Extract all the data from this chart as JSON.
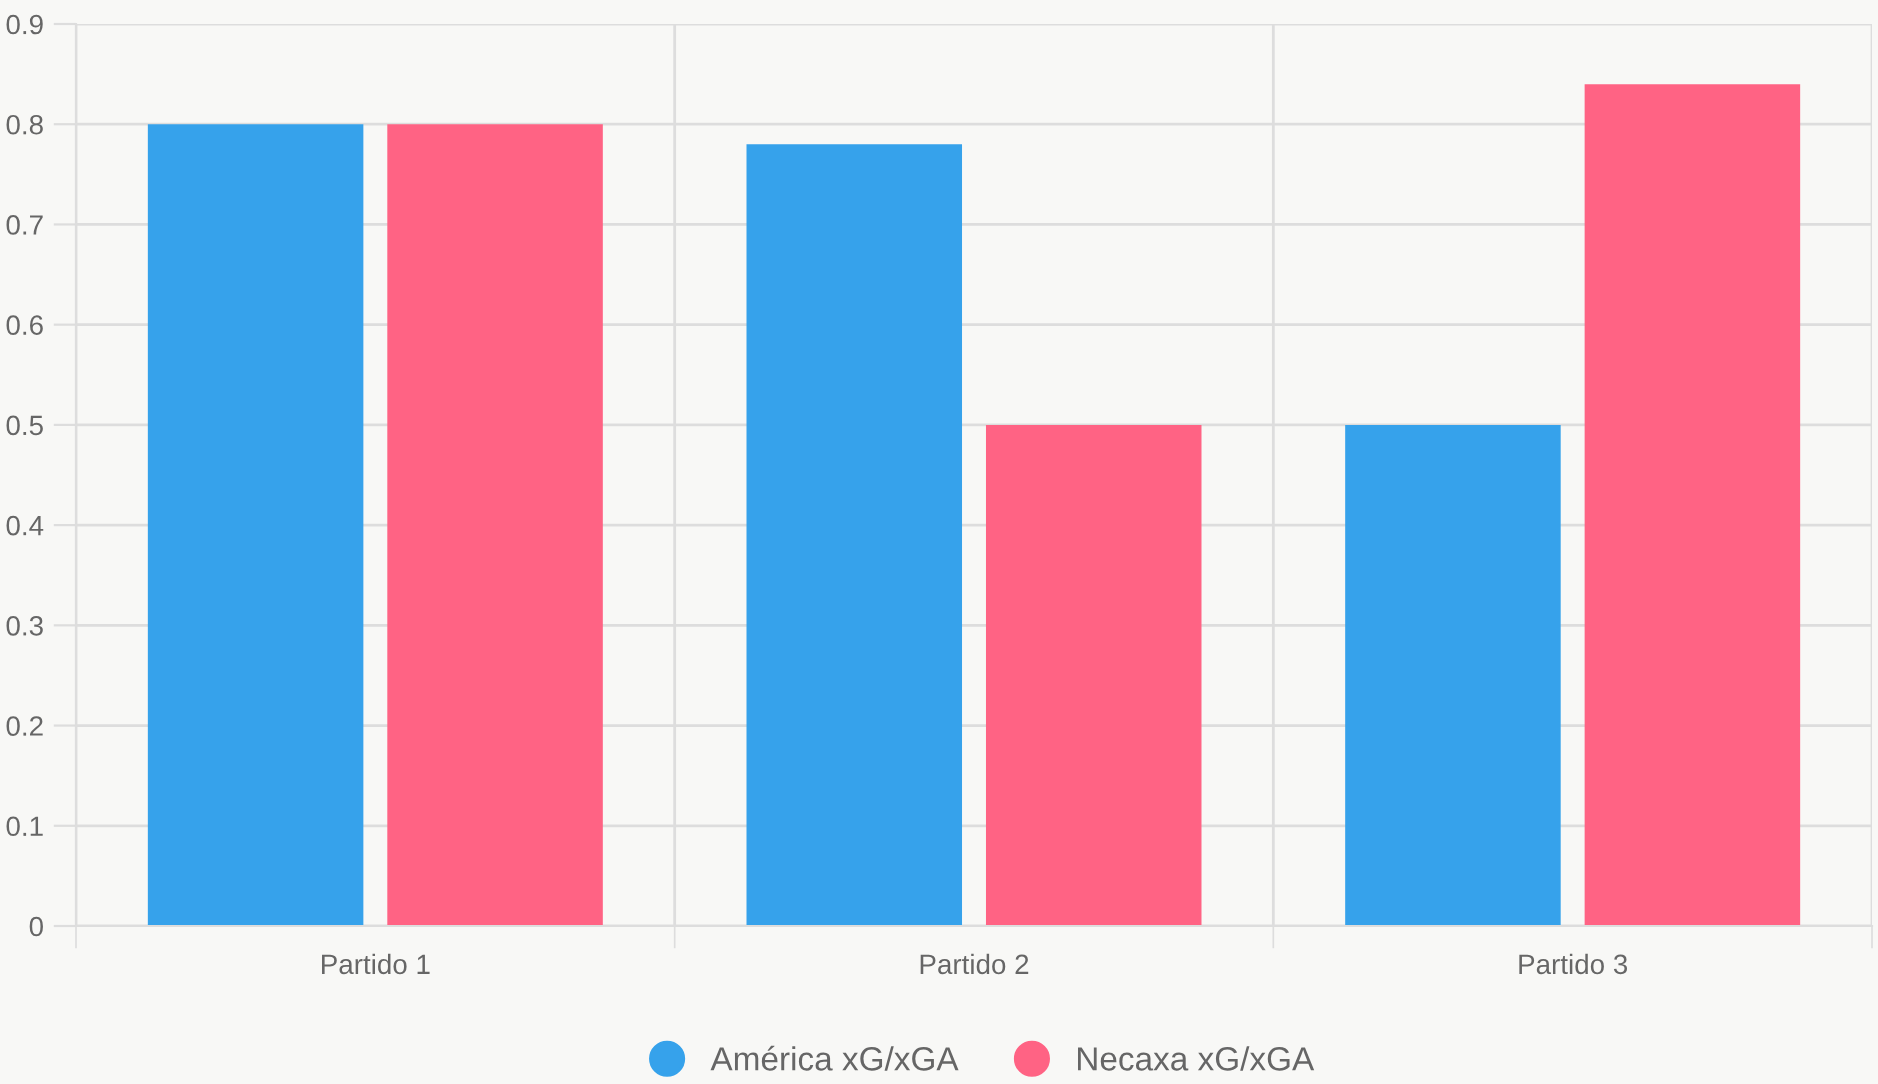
{
  "chart_data": {
    "type": "bar",
    "categories": [
      "Partido 1",
      "Partido 2",
      "Partido 3"
    ],
    "series": [
      {
        "name": "América xG/xGA",
        "color": "#36a2eb",
        "values": [
          0.8,
          0.78,
          0.5
        ]
      },
      {
        "name": "Necaxa xG/xGA",
        "color": "#ff6384",
        "values": [
          0.8,
          0.5,
          0.84
        ]
      }
    ],
    "ylim": [
      0,
      0.9
    ],
    "yticks": [
      0,
      0.1,
      0.2,
      0.3,
      0.4,
      0.5,
      0.6,
      0.7,
      0.8,
      0.9
    ],
    "grid": true,
    "legend": "bottom"
  }
}
